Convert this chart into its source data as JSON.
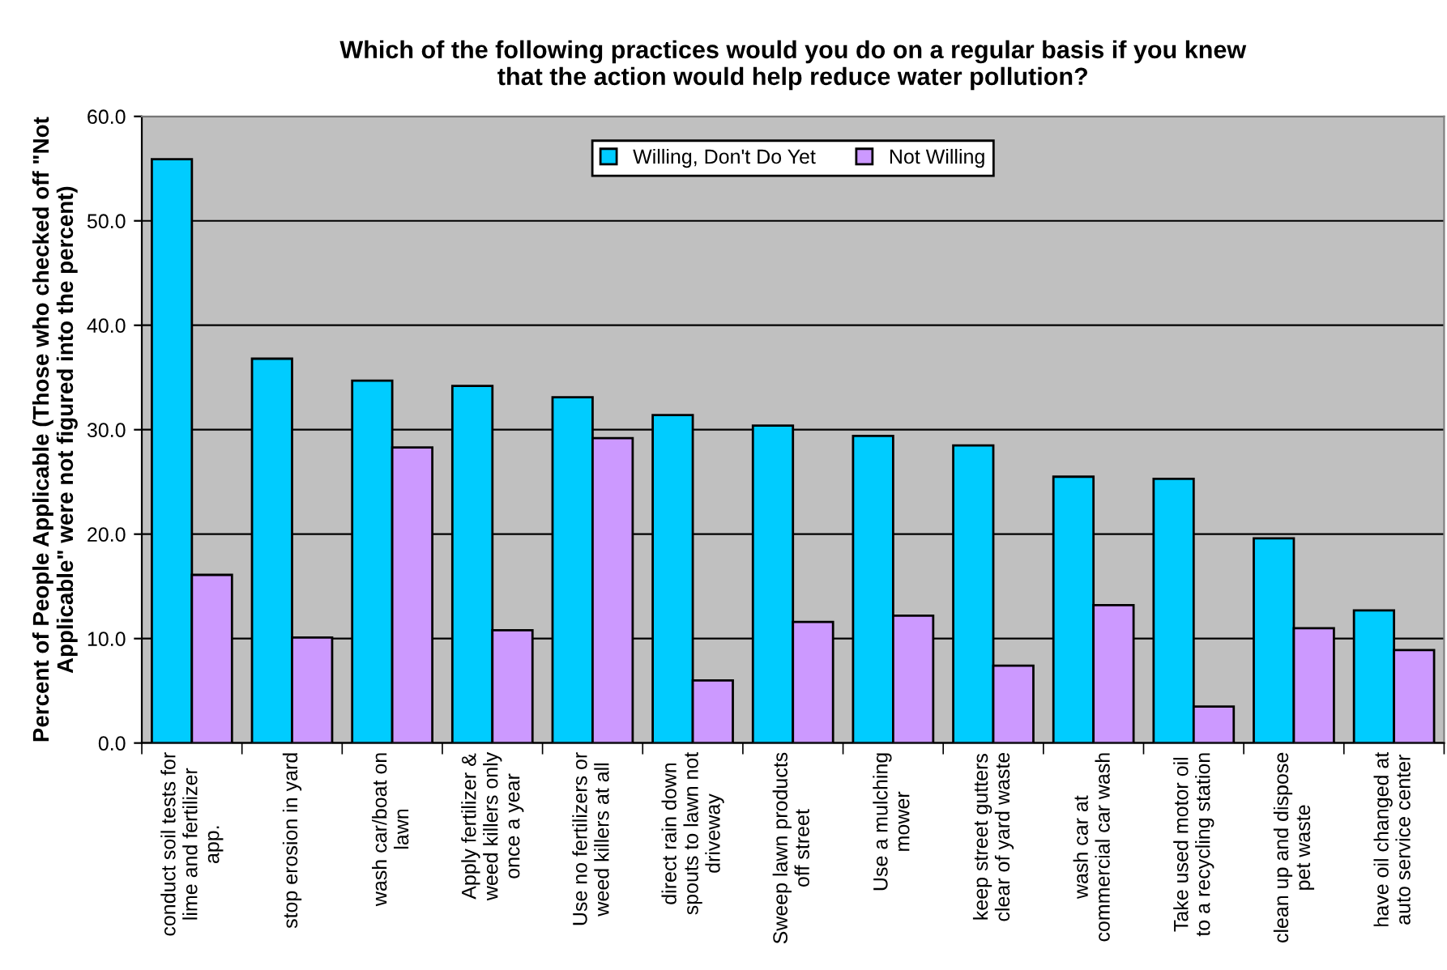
{
  "chart_data": {
    "type": "bar",
    "title": "Which of the following practices would you do on a regular basis if you knew\nthat the action would help reduce water pollution?",
    "ylabel": "Percent of People Applicable (Those who checked off \"Not\nApplicable\" were not figured into the percent)",
    "categories": [
      "conduct soil tests for\nlime and fertilizer\napp.",
      "stop erosion in yard",
      "wash car/boat on\nlawn",
      "Apply fertilizer &\nweed killers only\nonce a year",
      "Use no fertilizers or\nweed killers at all",
      "direct rain down\nspouts to lawn not\ndriveway",
      "Sweep lawn products\noff street",
      "Use a mulching\nmower",
      "keep street gutters\nclear of yard waste",
      "wash car at\ncommercial car wash",
      "Take used motor oil\nto a recycling station",
      "clean up and dispose\npet waste",
      "have oil changed at\nauto service center"
    ],
    "series": [
      {
        "name": "Willing, Don't Do Yet",
        "color": "#00ccff",
        "values": [
          55.9,
          36.8,
          34.7,
          34.2,
          33.1,
          31.4,
          30.4,
          29.4,
          28.5,
          25.5,
          25.3,
          19.6,
          12.7
        ]
      },
      {
        "name": "Not Willing",
        "color": "#cc99ff",
        "values": [
          16.1,
          10.1,
          28.3,
          10.8,
          29.2,
          6.0,
          11.6,
          12.2,
          7.4,
          13.2,
          3.5,
          11.0,
          8.9
        ]
      }
    ],
    "ylim": [
      0,
      60
    ],
    "yticks": [
      {
        "value": 0,
        "label": "0.0"
      },
      {
        "value": 10,
        "label": "10.0"
      },
      {
        "value": 20,
        "label": "20.0"
      },
      {
        "value": 30,
        "label": "30.0"
      },
      {
        "value": 40,
        "label": "40.0"
      },
      {
        "value": 50,
        "label": "50.0"
      },
      {
        "value": 60,
        "label": "60.0"
      }
    ],
    "grid": "y",
    "legend": "top"
  }
}
